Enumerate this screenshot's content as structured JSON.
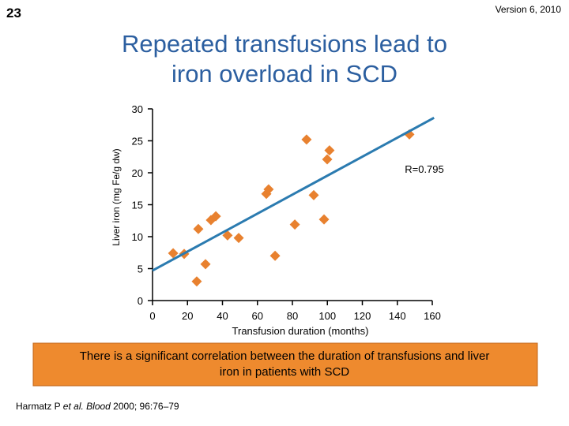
{
  "slide_number": "23",
  "version": "Version 6, 2010",
  "title_lines": [
    "Repeated transfusions lead to",
    "iron overload in SCD"
  ],
  "chart_data": {
    "type": "scatter",
    "x_label": "Transfusion duration (months)",
    "y_label": "Liver iron (mg Fe/g dw)",
    "xlim": [
      0,
      160
    ],
    "ylim": [
      0,
      30
    ],
    "xticks": [
      0,
      20,
      40,
      60,
      80,
      100,
      120,
      140,
      160
    ],
    "yticks": [
      0,
      5,
      10,
      15,
      20,
      25,
      30
    ],
    "color": "#e8812f",
    "x": [
      11.8,
      18.1,
      25.3,
      26.2,
      30.3,
      33.4,
      36.2,
      42.9,
      49.3,
      65.1,
      66.4,
      70.1,
      81.4,
      88.1,
      92.2,
      98.1,
      99.9,
      101.2,
      146.9
    ],
    "values": [
      7.4,
      7.3,
      3.0,
      11.2,
      5.7,
      12.6,
      13.2,
      10.2,
      9.8,
      16.7,
      17.4,
      7.0,
      11.9,
      25.2,
      16.5,
      12.7,
      22.1,
      23.5,
      26.0
    ],
    "trend": {
      "color": "#2b7bb0",
      "x": [
        0,
        161
      ],
      "values": [
        4.7,
        28.6
      ]
    },
    "annotation": "R=0.795"
  },
  "callout_lines": [
    "There is a significant correlation between the duration of transfusions and liver",
    "iron in patients with SCD"
  ],
  "citation": [
    "Harmatz P ",
    "et al.",
    " Blood",
    " 2000; 96:76–79"
  ]
}
